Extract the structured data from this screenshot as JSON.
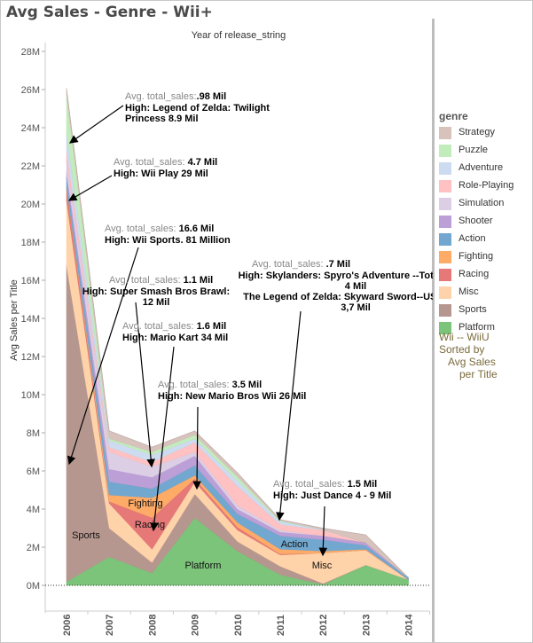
{
  "title": "Avg Sales - Genre - Wii+",
  "legend": {
    "title": "genre",
    "items": [
      {
        "label": "Strategy",
        "color": "#d8c2bc"
      },
      {
        "label": "Puzzle",
        "color": "#c2ecbb"
      },
      {
        "label": "Adventure",
        "color": "#cddbf0"
      },
      {
        "label": "Role-Playing",
        "color": "#ffc1c1"
      },
      {
        "label": "Simulation",
        "color": "#dccfe5"
      },
      {
        "label": "Shooter",
        "color": "#bc9fd6"
      },
      {
        "label": "Action",
        "color": "#72a8cf"
      },
      {
        "label": "Fighting",
        "color": "#ffab68"
      },
      {
        "label": "Racing",
        "color": "#e67878"
      },
      {
        "label": "Misc",
        "color": "#ffd3a9"
      },
      {
        "label": "Sports",
        "color": "#b6978f"
      },
      {
        "label": "Platform",
        "color": "#7dc47b"
      }
    ],
    "note": [
      "Wii -- WiiU",
      "Sorted by",
      "Avg Sales",
      "per Title"
    ]
  },
  "chart_data": {
    "type": "area",
    "stacked": true,
    "title": "Year of release_string",
    "xlabel": "Year of release_string",
    "ylabel": "Avg Sales per Title",
    "ylim": [
      0,
      28000000
    ],
    "yticks": [
      "0M",
      "2M",
      "4M",
      "6M",
      "8M",
      "10M",
      "12M",
      "14M",
      "16M",
      "18M",
      "20M",
      "22M",
      "24M",
      "26M",
      "28M"
    ],
    "categories": [
      "2006",
      "2007",
      "2008",
      "2009",
      "2010",
      "2011",
      "2012",
      "2013",
      "2014"
    ],
    "series": [
      {
        "name": "Platform",
        "values": [
          0.2,
          1.5,
          0.65,
          3.55,
          1.8,
          0.56,
          0.05,
          1.07,
          0.3
        ]
      },
      {
        "name": "Sports",
        "values": [
          16.6,
          1.5,
          0.55,
          1.25,
          0.5,
          0.44,
          0.05,
          0,
          0
        ]
      },
      {
        "name": "Misc",
        "values": [
          3.4,
          1.3,
          0.7,
          0.64,
          0.6,
          0.6,
          1.6,
          0.78,
          0
        ]
      },
      {
        "name": "Racing",
        "values": [
          0.6,
          0.1,
          1.65,
          0.16,
          0.15,
          0.05,
          0,
          0,
          0
        ]
      },
      {
        "name": "Fighting",
        "values": [
          0.1,
          0.34,
          1.05,
          0.17,
          0.25,
          0.25,
          0.1,
          0.05,
          0
        ]
      },
      {
        "name": "Action",
        "values": [
          0.5,
          0.7,
          0.47,
          0.53,
          0.45,
          0.7,
          0.6,
          0.2,
          0.1
        ]
      },
      {
        "name": "Shooter",
        "values": [
          0.3,
          0.66,
          0.6,
          0.5,
          0.25,
          0.2,
          0.2,
          0.15,
          0
        ]
      },
      {
        "name": "Simulation",
        "values": [
          0.6,
          0.9,
          0.56,
          0.2,
          0.2,
          0.1,
          0,
          0,
          0
        ]
      },
      {
        "name": "Role-Playing",
        "values": [
          0.5,
          0.25,
          0.24,
          0.5,
          1.0,
          0.3,
          0.3,
          0,
          0
        ]
      },
      {
        "name": "Adventure",
        "values": [
          0.98,
          0.35,
          0.37,
          0.2,
          0.3,
          0.15,
          0.03,
          0,
          0
        ]
      },
      {
        "name": "Puzzle",
        "values": [
          2.0,
          0.1,
          0.16,
          0.2,
          0.2,
          0.05,
          0,
          0,
          0
        ]
      },
      {
        "name": "Strategy",
        "values": [
          0.3,
          0.4,
          0.25,
          0.2,
          0.2,
          0.05,
          0.07,
          0.4,
          0
        ]
      }
    ],
    "value_unit": "M",
    "area_labels": [
      "Sports",
      "Fighting",
      "Racing",
      "Platform",
      "Action",
      "Misc"
    ],
    "annotations": [
      {
        "avg_label": "Avg.  total_sales:",
        "avg_value": ".98 Mil",
        "high": [
          "High: Legend of Zelda: Twilight",
          "Princess 8.9 Mil"
        ]
      },
      {
        "avg_label": "Avg.  total_sales:",
        "avg_value": " 4.7 Mil",
        "high": [
          "High: Wii Play 29 Mil"
        ]
      },
      {
        "avg_label": "Avg.  total_sales:",
        "avg_value": " 16.6 Mil",
        "high": [
          "High: Wii Sports. 81 Million"
        ]
      },
      {
        "avg_label": "Avg.  total_sales:",
        "avg_value": " 1.1 Mil",
        "high": [
          "High: Super Smash Bros Brawl:",
          "12 Mil"
        ]
      },
      {
        "avg_label": "Avg.  total_sales:",
        "avg_value": " 1.6 Mil",
        "high": [
          "High: Mario Kart 34 Mil"
        ]
      },
      {
        "avg_label": "Avg.  total_sales:",
        "avg_value": " 3.5 Mil",
        "high": [
          "High: New Mario Bros Wii 26 Mil"
        ]
      },
      {
        "avg_label": "Avg.  total_sales:",
        "avg_value": " .7 Mil",
        "high": [
          "High: Skylanders: Spyro's Adventure --Total Sales:",
          "4 Mil",
          "The Legend of Zelda: Skyward Sword--US Sales:",
          "3,7 Mil"
        ]
      },
      {
        "avg_label": "Avg.  total_sales:",
        "avg_value": " 1.5 Mil",
        "high": [
          "High: Just Dance 4 - 9 Mil"
        ]
      }
    ]
  }
}
